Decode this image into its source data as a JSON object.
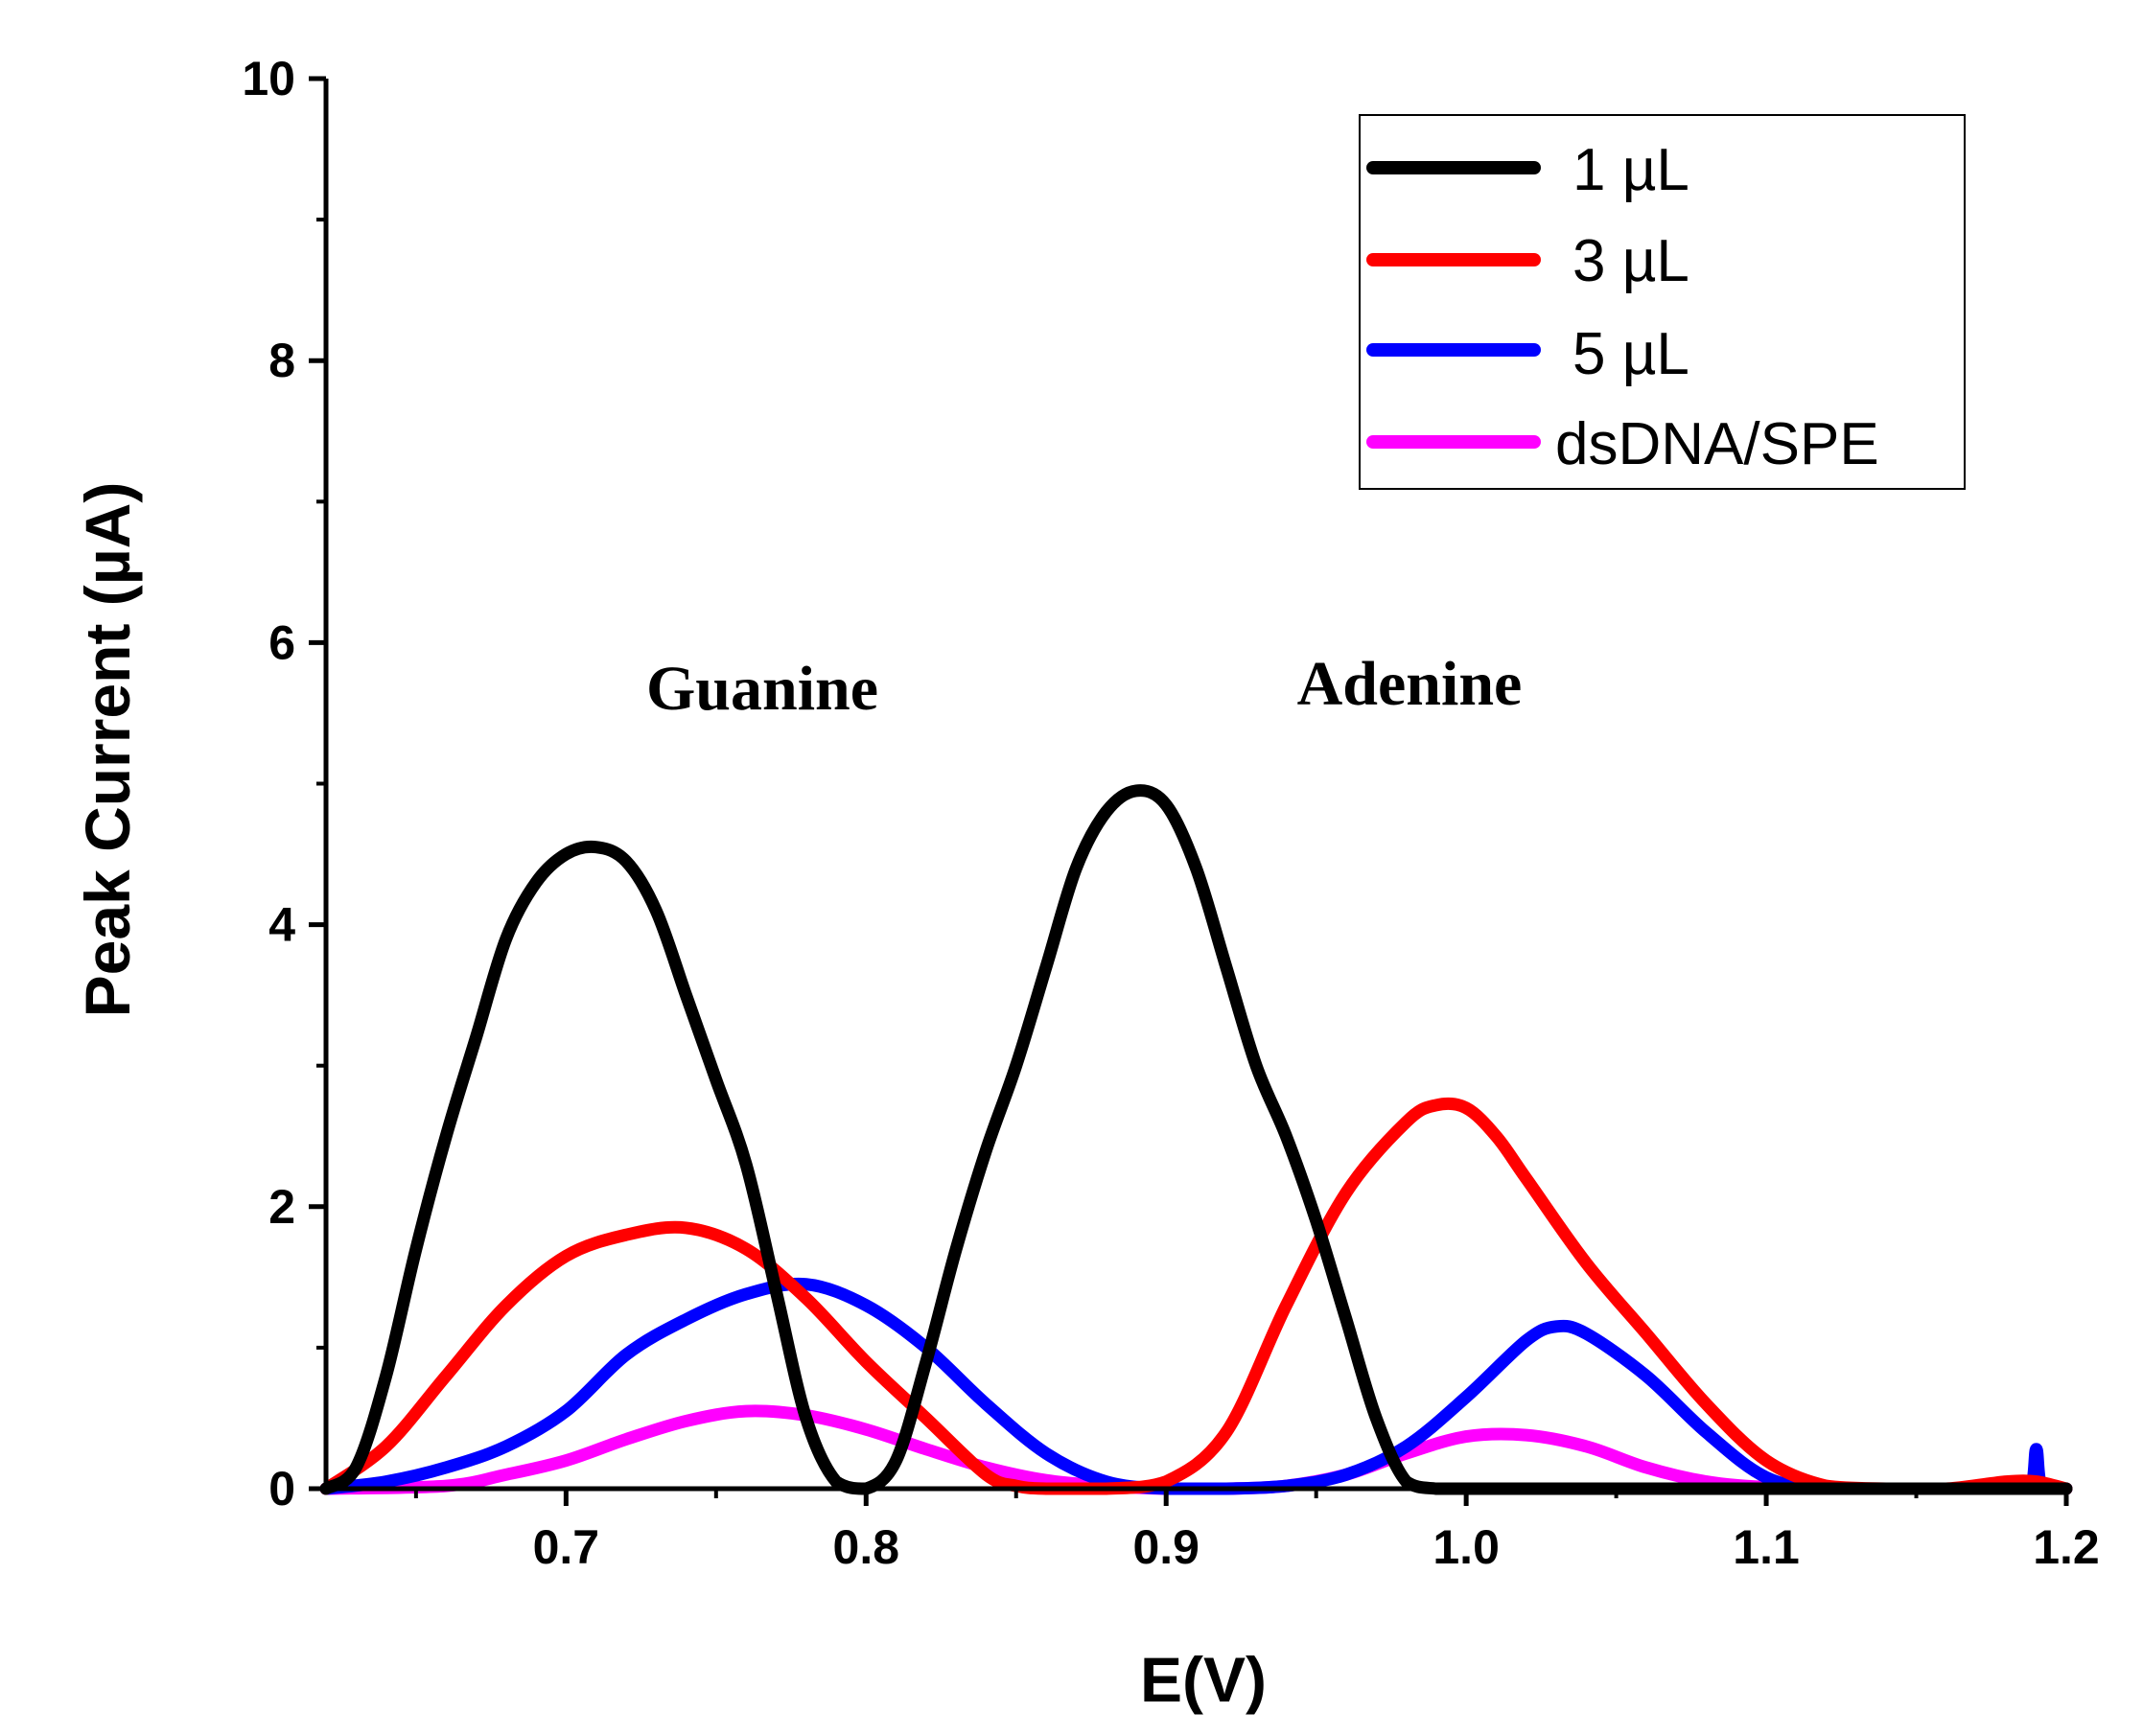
{
  "chart_data": {
    "type": "line",
    "title": "",
    "xlabel": "E(V)",
    "ylabel": "Peak Current (µA)",
    "xlim": [
      0.62,
      1.2
    ],
    "ylim": [
      0,
      10
    ],
    "x_ticks": [
      0.7,
      0.8,
      0.9,
      1.0,
      1.1,
      1.2
    ],
    "x_tick_labels": [
      "0.7",
      "0.8",
      "0.9",
      "1.0",
      "1.1",
      "1.2"
    ],
    "y_ticks": [
      0,
      2,
      4,
      6,
      8,
      10
    ],
    "y_tick_labels": [
      "0",
      "2",
      "4",
      "6",
      "8",
      "10"
    ],
    "grid": false,
    "legend_position": "top-right",
    "annotations": [
      {
        "text": "Guanine",
        "x": 0.73,
        "y": 5.7
      },
      {
        "text": "Adenine",
        "x": 0.98,
        "y": 5.75
      }
    ],
    "series": [
      {
        "name": "1 µL",
        "color": "#000000",
        "x": [
          0.62,
          0.63,
          0.64,
          0.65,
          0.66,
          0.67,
          0.68,
          0.69,
          0.7,
          0.71,
          0.72,
          0.73,
          0.74,
          0.75,
          0.76,
          0.77,
          0.78,
          0.79,
          0.8,
          0.81,
          0.82,
          0.83,
          0.84,
          0.85,
          0.86,
          0.87,
          0.88,
          0.89,
          0.9,
          0.91,
          0.92,
          0.93,
          0.94,
          0.95,
          0.96,
          0.97,
          0.98,
          0.99,
          1.0,
          1.01,
          1.02,
          1.05,
          1.1,
          1.15,
          1.2
        ],
        "y": [
          0.0,
          0.15,
          0.8,
          1.7,
          2.5,
          3.2,
          3.9,
          4.3,
          4.5,
          4.55,
          4.45,
          4.1,
          3.5,
          2.9,
          2.3,
          1.4,
          0.5,
          0.05,
          0.0,
          0.2,
          0.9,
          1.7,
          2.4,
          3.0,
          3.7,
          4.4,
          4.8,
          4.95,
          4.85,
          4.4,
          3.7,
          3.0,
          2.5,
          1.9,
          1.2,
          0.5,
          0.05,
          0.0,
          0.0,
          0.0,
          0.0,
          0.0,
          0.0,
          0.0,
          0.0
        ]
      },
      {
        "name": "3 µL",
        "color": "#ff0000",
        "x": [
          0.62,
          0.64,
          0.66,
          0.68,
          0.7,
          0.72,
          0.74,
          0.76,
          0.78,
          0.8,
          0.82,
          0.84,
          0.85,
          0.86,
          0.88,
          0.9,
          0.92,
          0.94,
          0.96,
          0.98,
          0.99,
          1.0,
          1.01,
          1.02,
          1.04,
          1.06,
          1.08,
          1.1,
          1.12,
          1.14,
          1.16,
          1.18,
          1.19,
          1.2
        ],
        "y": [
          0.0,
          0.3,
          0.8,
          1.3,
          1.65,
          1.8,
          1.85,
          1.7,
          1.35,
          0.9,
          0.5,
          0.1,
          0.02,
          0.0,
          0.0,
          0.05,
          0.4,
          1.3,
          2.1,
          2.6,
          2.72,
          2.7,
          2.5,
          2.2,
          1.6,
          1.1,
          0.6,
          0.2,
          0.02,
          0.0,
          0.0,
          0.05,
          0.05,
          0.0
        ]
      },
      {
        "name": "5 µL",
        "color": "#0000ff",
        "x": [
          0.62,
          0.64,
          0.66,
          0.68,
          0.7,
          0.72,
          0.74,
          0.76,
          0.78,
          0.8,
          0.82,
          0.84,
          0.86,
          0.88,
          0.9,
          0.92,
          0.94,
          0.96,
          0.98,
          1.0,
          1.02,
          1.03,
          1.04,
          1.06,
          1.08,
          1.1,
          1.12,
          1.15,
          1.18,
          1.188,
          1.19,
          1.192,
          1.2
        ],
        "y": [
          0.0,
          0.05,
          0.15,
          0.3,
          0.55,
          0.95,
          1.2,
          1.38,
          1.45,
          1.3,
          1.0,
          0.6,
          0.25,
          0.05,
          0.0,
          0.0,
          0.02,
          0.1,
          0.3,
          0.65,
          1.05,
          1.15,
          1.1,
          0.8,
          0.4,
          0.08,
          0.0,
          0.0,
          0.0,
          0.0,
          0.28,
          0.0,
          0.0
        ]
      },
      {
        "name": "dsDNA/SPE",
        "color": "#ff00ff",
        "x": [
          0.62,
          0.66,
          0.68,
          0.7,
          0.72,
          0.74,
          0.76,
          0.78,
          0.8,
          0.82,
          0.84,
          0.86,
          0.88,
          0.9,
          0.92,
          0.94,
          0.96,
          0.98,
          1.0,
          1.02,
          1.04,
          1.06,
          1.08,
          1.1,
          1.12,
          1.2
        ],
        "y": [
          0.0,
          0.02,
          0.1,
          0.2,
          0.35,
          0.48,
          0.55,
          0.52,
          0.42,
          0.28,
          0.15,
          0.06,
          0.02,
          0.0,
          0.0,
          0.02,
          0.1,
          0.25,
          0.37,
          0.38,
          0.3,
          0.15,
          0.05,
          0.01,
          0.0,
          0.0
        ]
      }
    ]
  }
}
